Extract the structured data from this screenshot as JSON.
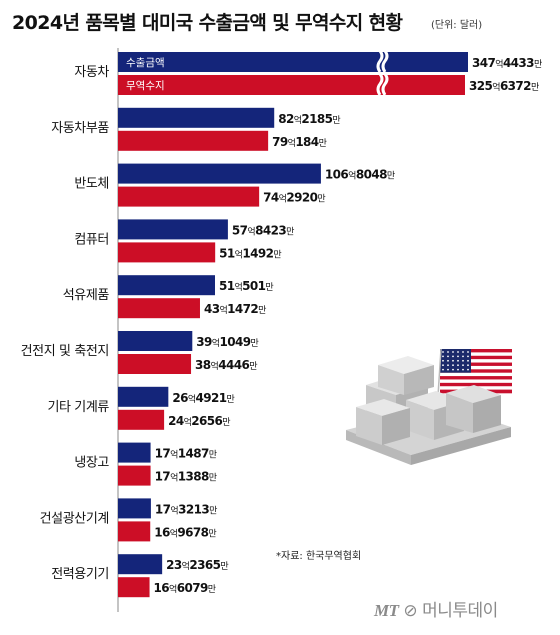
{
  "brand": {
    "name": "머니투데이"
  },
  "chart_data": {
    "type": "bar",
    "orientation": "horizontal",
    "title": "2024년 품목별 대미국 수출금액 및 무역수지 현황",
    "unit": "(단위: 달러)",
    "source": "*자료: 한국무역협회",
    "categories": [
      "자동차",
      "자동차부품",
      "반도체",
      "컴퓨터",
      "석유제품",
      "건전지 및 축전지",
      "기타 기계류",
      "냉장고",
      "건설광산기계",
      "전력용기기"
    ],
    "series": [
      {
        "name": "수출금액",
        "color": "#14257a",
        "values_eok": [
          347.4433,
          82.2185,
          106.8048,
          57.8423,
          51.0501,
          39.1049,
          26.4921,
          17.1487,
          17.3213,
          23.2365
        ],
        "labels": [
          [
            "347",
            "4433"
          ],
          [
            "82",
            "2185"
          ],
          [
            "106",
            "8048"
          ],
          [
            "57",
            "8423"
          ],
          [
            "51",
            "501"
          ],
          [
            "39",
            "1049"
          ],
          [
            "26",
            "4921"
          ],
          [
            "17",
            "1487"
          ],
          [
            "17",
            "3213"
          ],
          [
            "23",
            "2365"
          ]
        ]
      },
      {
        "name": "무역수지",
        "color": "#cc0e26",
        "values_eok": [
          325.6372,
          79.0184,
          74.292,
          51.1492,
          43.1472,
          38.4446,
          24.2656,
          17.1388,
          16.9678,
          16.6079
        ],
        "labels": [
          [
            "325",
            "6372"
          ],
          [
            "79",
            "184"
          ],
          [
            "74",
            "2920"
          ],
          [
            "51",
            "1492"
          ],
          [
            "43",
            "1472"
          ],
          [
            "38",
            "4446"
          ],
          [
            "24",
            "2656"
          ],
          [
            "17",
            "1388"
          ],
          [
            "16",
            "9678"
          ],
          [
            "16",
            "6079"
          ]
        ]
      }
    ],
    "unit_words": {
      "eok": "억",
      "man": "만"
    },
    "axis_break": {
      "category": "자동차"
    },
    "legend": "inside-first-bars"
  }
}
